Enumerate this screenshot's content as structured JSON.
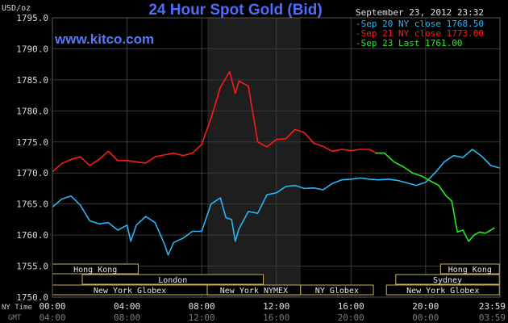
{
  "chart_data": {
    "type": "line",
    "title": "24 Hour Spot Gold (Bid)",
    "website": "www.kitco.com",
    "ylabel": "USD/oz",
    "date_label": "September 23, 2012 23:32",
    "ylim": [
      1750,
      1795
    ],
    "y_ticks": [
      "1795.0",
      "1790.0",
      "1785.0",
      "1780.0",
      "1775.0",
      "1770.0",
      "1765.0",
      "1760.0",
      "1755.0",
      "1750.0"
    ],
    "x_row_labels": [
      "NY Time",
      "GMT"
    ],
    "x_ticks_ny": [
      "00:00",
      "04:00",
      "08:00",
      "12:00",
      "16:00",
      "20:00",
      "23:59"
    ],
    "x_ticks_gmt": [
      "04:00",
      "08:00",
      "12:00",
      "16:00",
      "20:00",
      "00:00",
      "03:59"
    ],
    "x_tick_hours": [
      0,
      4,
      8,
      12,
      16,
      20,
      23.983
    ],
    "shaded_hours": [
      8.3,
      13.3
    ],
    "colors": {
      "background": "#000000",
      "grid": "#3a3a3a",
      "shade": "#1e1e1e",
      "title": "#4f6cff",
      "axis_text": "#d8d8d8",
      "session_border": "#c8b060"
    },
    "legend": [
      {
        "label": "Sep 20 NY close 1768.50",
        "color": "#29b6f6"
      },
      {
        "label": "Sep 21 NY close 1773.00",
        "color": "#ff1a1a"
      },
      {
        "label": "Sep 23 Last 1761.00",
        "color": "#22ee22"
      }
    ],
    "sessions": [
      {
        "label": "Hong Kong",
        "start": 0,
        "end": 4.6,
        "row": 0
      },
      {
        "label": "Hong Kong",
        "start": 20.8,
        "end": 23.95,
        "row": 0
      },
      {
        "label": "London",
        "start": 1.6,
        "end": 11.3,
        "row": 1
      },
      {
        "label": "Sydney",
        "start": 18.4,
        "end": 23.95,
        "row": 1
      },
      {
        "label": "New York Globex",
        "start": 0,
        "end": 8.3,
        "row": 2
      },
      {
        "label": "New York NYMEX",
        "start": 8.3,
        "end": 13.3,
        "row": 2
      },
      {
        "label": "NY Globex",
        "start": 13.3,
        "end": 17.2,
        "row": 2
      },
      {
        "label": "New York Globex",
        "start": 17.9,
        "end": 23.95,
        "row": 2
      }
    ],
    "series": [
      {
        "name": "Sep 20 NY close 1768.50",
        "color": "#29b6f6",
        "x": [
          0,
          0.5,
          1,
          1.5,
          2,
          2.5,
          3,
          3.5,
          4,
          4.2,
          4.5,
          5,
          5.5,
          6,
          6.2,
          6.5,
          7,
          7.5,
          8,
          8.5,
          9,
          9.3,
          9.6,
          9.8,
          10,
          10.5,
          11,
          11.5,
          12,
          12.5,
          13,
          13.5,
          14,
          14.5,
          15,
          15.5,
          16,
          16.5,
          17,
          17.5,
          18,
          18.5,
          19,
          19.5,
          20,
          20.5,
          21,
          21.5,
          22,
          22.5,
          23,
          23.5,
          23.98
        ],
        "y": [
          1764.5,
          1765.8,
          1766.3,
          1764.8,
          1762.3,
          1761.8,
          1762.0,
          1760.8,
          1761.6,
          1759.0,
          1761.6,
          1763.0,
          1762.0,
          1758.6,
          1756.8,
          1758.8,
          1759.5,
          1760.6,
          1760.6,
          1765.0,
          1766.0,
          1762.8,
          1762.5,
          1759.0,
          1761.0,
          1763.8,
          1763.5,
          1766.5,
          1766.8,
          1767.8,
          1768.0,
          1767.5,
          1767.6,
          1767.3,
          1768.3,
          1768.9,
          1769.0,
          1769.2,
          1769.0,
          1768.9,
          1769.0,
          1768.8,
          1768.4,
          1768.0,
          1768.5,
          1770.0,
          1771.8,
          1772.8,
          1772.5,
          1773.8,
          1772.7,
          1771.2,
          1770.8
        ]
      },
      {
        "name": "Sep 21 NY close 1773.00",
        "color": "#ff1a1a",
        "x": [
          0,
          0.5,
          1,
          1.5,
          2,
          2.5,
          3,
          3.5,
          4,
          4.5,
          5,
          5.5,
          6,
          6.5,
          7,
          7.5,
          8,
          8.5,
          9,
          9.5,
          9.8,
          10,
          10.5,
          11,
          11.5,
          12,
          12.5,
          13,
          13.5,
          14,
          14.5,
          15,
          15.5,
          16,
          16.5,
          17,
          17.3
        ],
        "y": [
          1770.2,
          1771.5,
          1772.2,
          1772.6,
          1771.2,
          1772.2,
          1773.5,
          1772.0,
          1772.0,
          1771.8,
          1771.6,
          1772.6,
          1772.9,
          1773.2,
          1772.8,
          1773.2,
          1774.6,
          1778.8,
          1783.8,
          1786.3,
          1782.8,
          1784.8,
          1784.0,
          1775.0,
          1774.2,
          1775.4,
          1775.5,
          1777.0,
          1776.5,
          1774.8,
          1774.3,
          1773.5,
          1773.8,
          1773.6,
          1773.8,
          1773.8,
          1773.3
        ]
      },
      {
        "name": "Sep 23 Last 1761.00",
        "color": "#22ee22",
        "x": [
          17.3,
          17.8,
          18.3,
          18.8,
          19.3,
          19.8,
          20.2,
          20.7,
          21.1,
          21.4,
          21.7,
          22.0,
          22.3,
          22.6,
          22.9,
          23.2,
          23.5,
          23.7
        ],
        "y": [
          1773.2,
          1773.2,
          1771.8,
          1771.0,
          1770.0,
          1769.5,
          1768.8,
          1768.0,
          1766.3,
          1765.5,
          1760.5,
          1760.8,
          1759.0,
          1760.0,
          1760.5,
          1760.3,
          1760.8,
          1761.2
        ]
      }
    ]
  }
}
